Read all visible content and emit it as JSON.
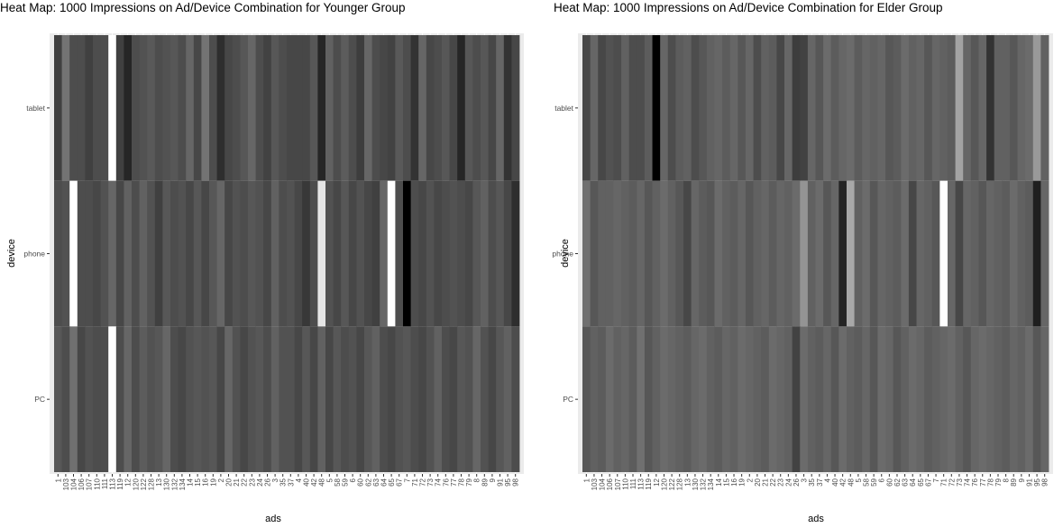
{
  "chart_data": [
    {
      "type": "heatmap",
      "title": "Heat Map: 1000 Impressions on Ad/Device Combination for Younger Group",
      "xlabel": "ads",
      "ylabel": "device",
      "x": [
        "1",
        "103",
        "104",
        "106",
        "107",
        "110",
        "111",
        "113",
        "119",
        "12",
        "120",
        "122",
        "128",
        "13",
        "130",
        "132",
        "134",
        "14",
        "15",
        "16",
        "19",
        "2",
        "20",
        "21",
        "22",
        "23",
        "24",
        "26",
        "3",
        "35",
        "37",
        "4",
        "40",
        "42",
        "48",
        "5",
        "58",
        "59",
        "6",
        "60",
        "62",
        "63",
        "64",
        "65",
        "67",
        "7",
        "71",
        "72",
        "73",
        "74",
        "76",
        "77",
        "78",
        "79",
        "8",
        "89",
        "9",
        "91",
        "95",
        "98"
      ],
      "y": [
        "tablet",
        "phone",
        "PC"
      ],
      "values": [
        [
          0.75,
          0.55,
          0.7,
          0.7,
          0.75,
          0.7,
          0.7,
          0.0,
          0.75,
          0.85,
          0.7,
          0.68,
          0.65,
          0.7,
          0.68,
          0.66,
          0.7,
          0.6,
          0.72,
          0.55,
          0.7,
          0.82,
          0.72,
          0.7,
          0.66,
          0.6,
          0.7,
          0.74,
          0.66,
          0.7,
          0.72,
          0.72,
          0.72,
          0.66,
          0.85,
          0.62,
          0.7,
          0.64,
          0.7,
          0.76,
          0.6,
          0.7,
          0.72,
          0.74,
          0.65,
          0.7,
          0.8,
          0.6,
          0.72,
          0.7,
          0.66,
          0.72,
          0.85,
          0.66,
          0.7,
          0.66,
          0.72,
          0.6,
          0.8,
          0.72
        ],
        [
          0.7,
          0.68,
          0.0,
          0.7,
          0.7,
          0.72,
          0.68,
          0.6,
          0.72,
          0.62,
          0.7,
          0.62,
          0.68,
          0.75,
          0.66,
          0.7,
          0.68,
          0.72,
          0.66,
          0.72,
          0.66,
          0.6,
          0.72,
          0.68,
          0.7,
          0.66,
          0.68,
          0.72,
          0.62,
          0.7,
          0.68,
          0.72,
          0.78,
          0.7,
          0.1,
          0.68,
          0.72,
          0.66,
          0.72,
          0.68,
          0.72,
          0.75,
          0.6,
          0.0,
          0.7,
          1.0,
          0.7,
          0.72,
          0.68,
          0.72,
          0.7,
          0.68,
          0.7,
          0.72,
          0.66,
          0.62,
          0.7,
          0.66,
          0.72,
          0.82
        ],
        [
          0.66,
          0.7,
          0.56,
          0.72,
          0.68,
          0.7,
          0.7,
          0.0,
          0.7,
          0.6,
          0.7,
          0.64,
          0.68,
          0.66,
          0.6,
          0.7,
          0.72,
          0.68,
          0.66,
          0.68,
          0.66,
          0.72,
          0.6,
          0.68,
          0.72,
          0.68,
          0.66,
          0.7,
          0.62,
          0.68,
          0.68,
          0.72,
          0.66,
          0.72,
          0.62,
          0.72,
          0.66,
          0.7,
          0.68,
          0.72,
          0.66,
          0.62,
          0.7,
          0.72,
          0.68,
          0.66,
          0.7,
          0.72,
          0.68,
          0.62,
          0.7,
          0.72,
          0.66,
          0.68,
          0.6,
          0.68,
          0.72,
          0.66,
          0.62,
          0.7
        ]
      ],
      "color_scale": {
        "low": "#ffffff",
        "high": "#000000"
      }
    },
    {
      "type": "heatmap",
      "title": "Heat Map: 1000 Impressions on Ad/Device Combination for Elder Group",
      "xlabel": "ads",
      "ylabel": "device",
      "x": [
        "1",
        "103",
        "104",
        "106",
        "107",
        "110",
        "111",
        "113",
        "119",
        "12",
        "120",
        "122",
        "128",
        "13",
        "130",
        "132",
        "134",
        "14",
        "15",
        "16",
        "19",
        "2",
        "20",
        "21",
        "22",
        "23",
        "24",
        "26",
        "3",
        "35",
        "37",
        "4",
        "40",
        "42",
        "48",
        "5",
        "58",
        "59",
        "6",
        "60",
        "62",
        "63",
        "64",
        "65",
        "67",
        "7",
        "71",
        "72",
        "73",
        "74",
        "76",
        "77",
        "78",
        "79",
        "8",
        "89",
        "9",
        "91",
        "95",
        "98"
      ],
      "y": [
        "tablet",
        "phone",
        "PC"
      ],
      "values": [
        [
          0.72,
          0.6,
          0.72,
          0.68,
          0.7,
          0.62,
          0.7,
          0.7,
          0.64,
          1.0,
          0.6,
          0.7,
          0.64,
          0.62,
          0.7,
          0.66,
          0.62,
          0.6,
          0.64,
          0.6,
          0.66,
          0.6,
          0.7,
          0.62,
          0.64,
          0.72,
          0.6,
          0.76,
          0.74,
          0.6,
          0.66,
          0.58,
          0.64,
          0.6,
          0.58,
          0.64,
          0.6,
          0.62,
          0.6,
          0.66,
          0.64,
          0.58,
          0.62,
          0.6,
          0.66,
          0.6,
          0.62,
          0.64,
          0.36,
          0.6,
          0.66,
          0.6,
          0.8,
          0.62,
          0.62,
          0.66,
          0.6,
          0.58,
          0.4,
          0.62
        ],
        [
          0.56,
          0.66,
          0.62,
          0.62,
          0.6,
          0.62,
          0.64,
          0.6,
          0.66,
          0.62,
          0.58,
          0.62,
          0.66,
          0.72,
          0.6,
          0.64,
          0.66,
          0.58,
          0.62,
          0.64,
          0.6,
          0.66,
          0.62,
          0.6,
          0.64,
          0.6,
          0.62,
          0.58,
          0.42,
          0.62,
          0.58,
          0.66,
          0.6,
          0.86,
          0.34,
          0.62,
          0.58,
          0.66,
          0.6,
          0.62,
          0.64,
          0.58,
          0.72,
          0.6,
          0.62,
          0.66,
          0.0,
          0.6,
          0.72,
          0.6,
          0.62,
          0.66,
          0.6,
          0.62,
          0.64,
          0.58,
          0.62,
          0.64,
          0.88,
          0.6
        ],
        [
          0.66,
          0.62,
          0.64,
          0.58,
          0.62,
          0.6,
          0.64,
          0.56,
          0.66,
          0.62,
          0.58,
          0.6,
          0.62,
          0.64,
          0.6,
          0.58,
          0.62,
          0.64,
          0.6,
          0.62,
          0.58,
          0.6,
          0.62,
          0.64,
          0.58,
          0.6,
          0.62,
          0.74,
          0.58,
          0.62,
          0.64,
          0.6,
          0.66,
          0.58,
          0.62,
          0.64,
          0.6,
          0.66,
          0.58,
          0.6,
          0.66,
          0.62,
          0.58,
          0.6,
          0.64,
          0.62,
          0.6,
          0.58,
          0.62,
          0.66,
          0.6,
          0.58,
          0.6,
          0.62,
          0.64,
          0.6,
          0.62,
          0.58,
          0.66,
          0.6
        ]
      ],
      "color_scale": {
        "low": "#ffffff",
        "high": "#000000"
      }
    }
  ]
}
